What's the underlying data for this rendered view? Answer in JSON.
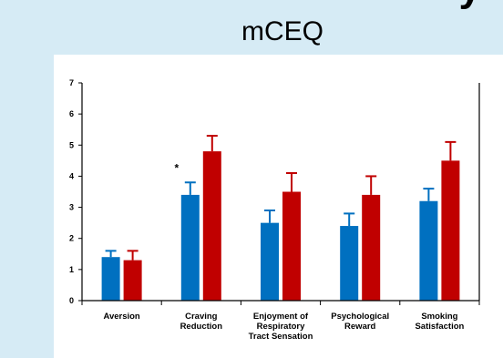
{
  "slide": {
    "title_fragment": "y",
    "chart_heading": "mCEQ"
  },
  "chart_data": {
    "type": "bar",
    "title": "mCEQ",
    "xlabel": "",
    "ylabel": "",
    "ylim": [
      0,
      7
    ],
    "yticks": [
      0,
      1,
      2,
      3,
      4,
      5,
      6,
      7
    ],
    "grid": false,
    "legend": "none",
    "categories": [
      [
        "Aversion"
      ],
      [
        "Craving",
        "Reduction"
      ],
      [
        "Enjoyment of",
        "Respiratory",
        "Tract Sensation"
      ],
      [
        "Psychological",
        "Reward"
      ],
      [
        "Smoking",
        "Satisfaction"
      ]
    ],
    "series": [
      {
        "color": "#0070c0",
        "values": [
          1.4,
          3.4,
          2.5,
          2.4,
          3.2
        ],
        "error_upper": [
          1.6,
          3.8,
          2.9,
          2.8,
          3.6
        ]
      },
      {
        "color": "#c00000",
        "values": [
          1.3,
          4.8,
          3.5,
          3.4,
          4.5
        ],
        "error_upper": [
          1.6,
          5.3,
          4.1,
          4.0,
          5.1
        ]
      }
    ],
    "annotations": [
      {
        "text": "*",
        "category_index": 1
      }
    ]
  }
}
